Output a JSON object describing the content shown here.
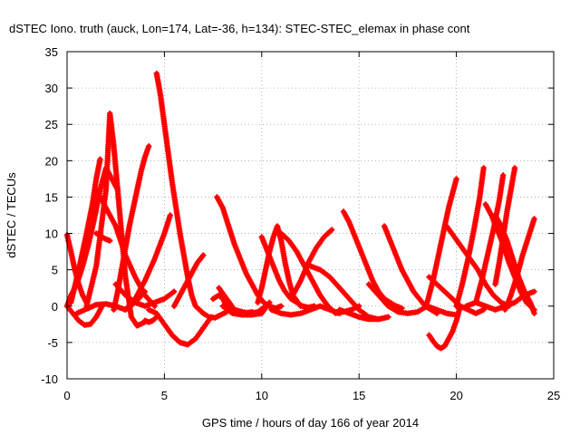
{
  "chart_data": {
    "type": "scatter",
    "title": "dSTEC Iono. truth (auck, Lon=174, Lat=-36, h=134): STEC-STEC_elemax in phase cont",
    "xlabel": "GPS time / hours of day 166 of year 2014",
    "ylabel": "dSTEC  / TECUs",
    "xlim": [
      0,
      25
    ],
    "ylim": [
      -10,
      35
    ],
    "xticks": [
      0,
      5,
      10,
      15,
      20,
      25
    ],
    "yticks": [
      -10,
      -5,
      0,
      5,
      10,
      15,
      20,
      25,
      30,
      35
    ],
    "grid": true,
    "marker": "+",
    "series_color": "#ff0000",
    "series": [
      {
        "x": [
          0.0,
          0.2,
          0.4,
          0.6,
          0.8,
          1.0
        ],
        "y": [
          9.8,
          7.5,
          5.0,
          3.0,
          1.5,
          0.5
        ]
      },
      {
        "x": [
          0.0,
          0.2,
          0.5,
          0.8,
          1.1,
          1.4,
          1.7,
          2.0,
          2.3,
          2.6
        ],
        "y": [
          0.0,
          1.5,
          3.0,
          5.5,
          8.5,
          12.0,
          16.0,
          19.0,
          17.5,
          16.0
        ]
      },
      {
        "x": [
          0.2,
          0.6,
          1.0,
          1.3,
          1.5,
          1.7
        ],
        "y": [
          0.5,
          5.0,
          10.0,
          14.0,
          17.5,
          20.2
        ]
      },
      {
        "x": [
          0.0,
          0.3,
          0.6,
          0.9,
          1.2,
          1.5,
          1.8
        ],
        "y": [
          0.0,
          -1.0,
          -2.0,
          -2.6,
          -2.5,
          -1.5,
          0.0
        ]
      },
      {
        "x": [
          1.0,
          1.5,
          2.0,
          2.2,
          2.4,
          2.6,
          2.8,
          3.0,
          3.3,
          3.6,
          4.0
        ],
        "y": [
          0.0,
          5.5,
          16.0,
          26.5,
          22.0,
          16.0,
          10.0,
          4.0,
          -1.5,
          -2.7,
          -2.2
        ]
      },
      {
        "x": [
          1.5,
          1.8,
          2.0,
          2.2
        ],
        "y": [
          10.0,
          9.5,
          9.2,
          9.0
        ]
      },
      {
        "x": [
          1.5,
          2.0,
          2.5,
          3.0,
          3.5,
          4.0,
          4.5
        ],
        "y": [
          16.0,
          13.5,
          11.0,
          7.0,
          4.0,
          1.5,
          0.0
        ]
      },
      {
        "x": [
          2.4,
          2.6,
          2.8,
          3.0,
          3.2,
          3.4,
          3.6,
          3.8,
          4.0,
          4.2
        ],
        "y": [
          -0.5,
          2.0,
          5.0,
          8.0,
          11.0,
          13.5,
          16.0,
          18.5,
          20.5,
          22.0
        ]
      },
      {
        "x": [
          0.5,
          1.0,
          1.5,
          2.0,
          2.5,
          3.0,
          3.5,
          4.0
        ],
        "y": [
          -1.0,
          -0.4,
          0.2,
          0.3,
          0.0,
          -0.5,
          0.5,
          2.0
        ]
      },
      {
        "x": [
          4.0,
          4.2,
          4.4,
          4.6
        ],
        "y": [
          -2.0,
          -2.2,
          -2.0,
          -1.5
        ]
      },
      {
        "x": [
          4.6,
          4.8,
          5.0,
          5.2,
          5.4,
          5.6,
          5.8,
          6.0,
          6.2,
          6.4,
          6.6,
          6.8,
          7.0
        ],
        "y": [
          32.0,
          29.0,
          25.0,
          21.0,
          17.0,
          13.5,
          10.0,
          7.0,
          4.0,
          1.5,
          0.0,
          -0.5,
          -1.0
        ]
      },
      {
        "x": [
          3.0,
          3.5,
          4.0,
          4.5,
          5.0,
          5.3
        ],
        "y": [
          -0.5,
          1.0,
          3.5,
          6.5,
          10.0,
          12.5
        ]
      },
      {
        "x": [
          2.5,
          3.0,
          3.5,
          4.0,
          4.5,
          5.0,
          5.5
        ],
        "y": [
          3.0,
          1.5,
          0.5,
          0.0,
          0.5,
          1.0,
          2.0
        ]
      },
      {
        "x": [
          4.2,
          4.6,
          5.0,
          5.4,
          5.8,
          6.2,
          6.6,
          7.0,
          7.4
        ],
        "y": [
          -0.5,
          -1.0,
          -2.5,
          -4.0,
          -5.0,
          -5.3,
          -4.5,
          -3.0,
          -1.5
        ]
      },
      {
        "x": [
          5.5,
          5.8,
          6.1,
          6.4,
          6.7,
          7.0
        ],
        "y": [
          0.0,
          1.5,
          3.0,
          4.5,
          6.0,
          7.0
        ]
      },
      {
        "x": [
          7.5,
          7.8,
          8.0,
          8.2,
          8.4,
          8.6,
          8.8,
          9.0,
          9.5
        ],
        "y": [
          1.0,
          1.5,
          1.0,
          0.0,
          -0.5,
          -0.8,
          -1.0,
          -1.0,
          -0.8
        ]
      },
      {
        "x": [
          7.7,
          8.0,
          8.3,
          8.6,
          8.9,
          9.2,
          9.5,
          9.8,
          10.1,
          10.4,
          10.7,
          11.0
        ],
        "y": [
          15.0,
          13.5,
          11.0,
          8.5,
          6.5,
          4.5,
          3.0,
          1.5,
          0.5,
          0.0,
          -0.3,
          0.0
        ]
      },
      {
        "x": [
          7.0,
          7.3,
          7.6,
          7.9,
          8.2
        ],
        "y": [
          -1.0,
          -1.5,
          -1.6,
          -1.2,
          -0.8
        ]
      },
      {
        "x": [
          8.0,
          8.5,
          9.0,
          9.5,
          10.0,
          10.4
        ],
        "y": [
          0.0,
          -1.0,
          -1.2,
          -1.2,
          -1.0,
          0.5
        ]
      },
      {
        "x": [
          7.8,
          8.2,
          8.6,
          9.0,
          9.4,
          9.8,
          10.2
        ],
        "y": [
          2.5,
          1.0,
          -0.5,
          -0.8,
          -1.0,
          -0.8,
          0.0
        ]
      },
      {
        "x": [
          9.8,
          10.0,
          10.2,
          10.4,
          10.6,
          10.8,
          11.0,
          11.2,
          11.4,
          11.6,
          12.0
        ],
        "y": [
          0.5,
          2.5,
          5.0,
          7.5,
          9.5,
          11.0,
          9.0,
          6.0,
          3.5,
          1.5,
          0.0
        ]
      },
      {
        "x": [
          10.0,
          10.3,
          10.6,
          10.9,
          11.2,
          11.5,
          11.8,
          12.1,
          12.4,
          12.7
        ],
        "y": [
          9.5,
          7.5,
          5.5,
          3.5,
          2.0,
          1.0,
          0.5,
          0.0,
          -0.2,
          0.0
        ]
      },
      {
        "x": [
          11.0,
          11.4,
          11.8,
          12.2,
          12.6,
          13.0,
          13.4,
          13.8,
          14.2,
          14.6,
          15.0
        ],
        "y": [
          10.0,
          9.0,
          7.5,
          5.5,
          3.5,
          1.5,
          0.0,
          -1.0,
          -0.8,
          -0.5,
          0.0
        ]
      },
      {
        "x": [
          10.5,
          11.0,
          11.5,
          12.0,
          12.5,
          13.0,
          13.5,
          14.0
        ],
        "y": [
          -0.5,
          -1.0,
          -1.2,
          -1.0,
          -0.5,
          0.0,
          -0.5,
          -1.0
        ]
      },
      {
        "x": [
          11.5,
          12.0,
          12.4,
          12.8,
          13.2,
          13.6
        ],
        "y": [
          1.0,
          3.5,
          6.0,
          8.0,
          9.5,
          10.5
        ]
      },
      {
        "x": [
          12.5,
          13.0,
          13.5,
          14.0,
          14.5,
          15.0,
          15.5,
          16.0
        ],
        "y": [
          5.5,
          5.0,
          4.0,
          2.5,
          1.0,
          -0.5,
          -1.5,
          -1.8
        ]
      },
      {
        "x": [
          14.2,
          14.5,
          14.8,
          15.1,
          15.4,
          15.7,
          16.0,
          16.3,
          16.6,
          16.9,
          17.2
        ],
        "y": [
          13.0,
          11.5,
          9.5,
          7.5,
          5.5,
          3.5,
          2.0,
          1.0,
          0.5,
          0.0,
          -0.3
        ]
      },
      {
        "x": [
          14.0,
          14.5,
          15.0,
          15.5,
          16.0,
          16.5
        ],
        "y": [
          -0.5,
          -1.0,
          -1.5,
          -1.8,
          -1.8,
          -1.5
        ]
      },
      {
        "x": [
          16.3,
          16.6,
          16.9,
          17.2,
          17.5,
          17.8,
          18.1,
          18.4,
          18.7,
          19.0
        ],
        "y": [
          11.0,
          9.0,
          7.0,
          5.0,
          3.5,
          2.0,
          1.0,
          0.0,
          -0.5,
          -1.0
        ]
      },
      {
        "x": [
          15.5,
          16.0,
          16.5,
          17.0,
          17.5,
          18.0,
          18.5,
          19.0,
          19.5,
          20.0
        ],
        "y": [
          3.0,
          1.5,
          0.0,
          -0.8,
          -1.0,
          -0.8,
          0.0,
          -0.5,
          -1.0,
          -1.2
        ]
      },
      {
        "x": [
          18.6,
          18.8,
          19.0,
          19.2,
          19.4,
          19.6,
          19.8,
          20.0,
          20.2
        ],
        "y": [
          -4.0,
          -4.8,
          -5.5,
          -5.8,
          -5.5,
          -4.5,
          -3.5,
          -2.0,
          0.0
        ]
      },
      {
        "x": [
          18.5,
          18.8,
          19.0,
          19.2,
          19.4,
          19.6,
          19.8,
          20.0
        ],
        "y": [
          0.5,
          3.5,
          6.0,
          8.5,
          11.0,
          13.5,
          15.5,
          17.5
        ]
      },
      {
        "x": [
          18.6,
          19.0,
          19.4,
          19.8,
          20.2,
          20.6,
          21.0,
          21.4
        ],
        "y": [
          4.0,
          3.0,
          2.0,
          1.0,
          0.0,
          -0.5,
          -1.0,
          -0.5
        ]
      },
      {
        "x": [
          19.5,
          19.9,
          20.3,
          20.7,
          21.1,
          21.5,
          21.9,
          22.3,
          22.7
        ],
        "y": [
          11.0,
          9.5,
          8.0,
          6.5,
          5.0,
          3.0,
          1.5,
          0.5,
          0.0
        ]
      },
      {
        "x": [
          20.0,
          20.3,
          20.6,
          20.9,
          21.2,
          21.4
        ],
        "y": [
          0.0,
          3.0,
          6.5,
          10.5,
          15.0,
          19.0
        ]
      },
      {
        "x": [
          21.0,
          21.3,
          21.6,
          21.9,
          22.2,
          22.4
        ],
        "y": [
          0.5,
          3.5,
          7.0,
          10.5,
          14.5,
          18.0
        ]
      },
      {
        "x": [
          22.0,
          22.2,
          22.4,
          22.6,
          22.8,
          23.0
        ],
        "y": [
          3.0,
          6.0,
          9.5,
          13.0,
          16.0,
          19.0
        ]
      },
      {
        "x": [
          21.5,
          21.8,
          22.1,
          22.4,
          22.7,
          23.0,
          23.3,
          23.6,
          24.0
        ],
        "y": [
          14.0,
          12.5,
          10.5,
          8.5,
          6.0,
          4.0,
          2.0,
          0.5,
          -0.5
        ]
      },
      {
        "x": [
          22.0,
          22.3,
          22.6,
          22.9,
          23.2,
          23.5,
          23.8,
          24.0
        ],
        "y": [
          12.5,
          11.0,
          9.0,
          6.5,
          4.0,
          2.0,
          0.5,
          -1.0
        ]
      },
      {
        "x": [
          22.5,
          22.8,
          23.1,
          23.4,
          23.7,
          24.0
        ],
        "y": [
          -0.5,
          1.5,
          4.0,
          7.0,
          9.5,
          12.0
        ]
      },
      {
        "x": [
          20.5,
          21.0,
          21.5,
          22.0,
          22.5,
          23.0,
          23.5,
          24.0
        ],
        "y": [
          0.0,
          0.5,
          0.0,
          -0.5,
          0.0,
          0.5,
          1.5,
          2.0
        ]
      }
    ]
  }
}
